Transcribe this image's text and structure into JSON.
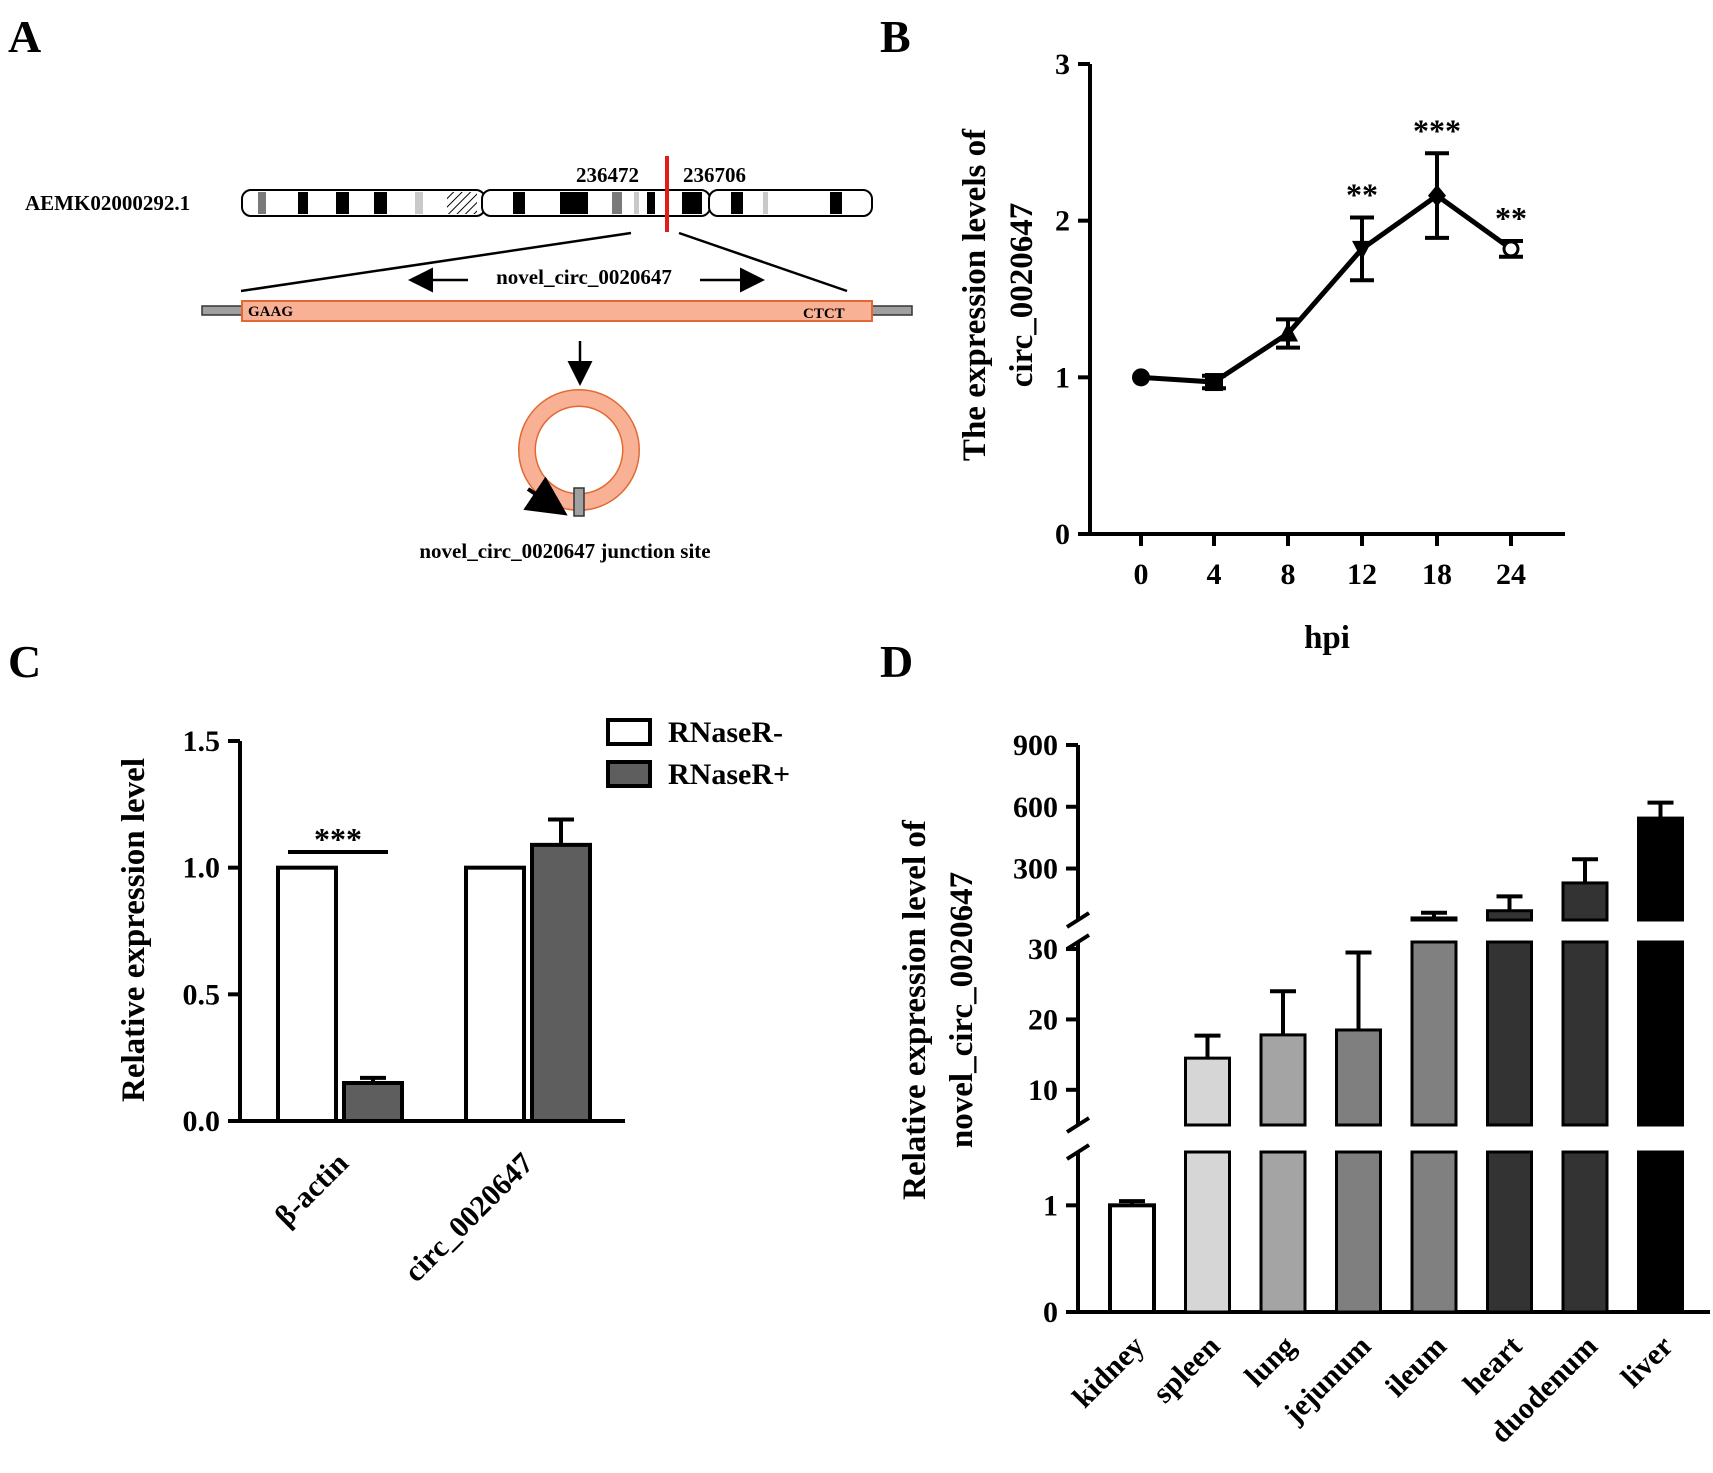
{
  "panels": {
    "A": {
      "letter": "A",
      "accession": "AEMK02000292.1",
      "start_pos": "236472",
      "end_pos": "236706",
      "circ_name": "novel_circ_0020647",
      "left_seq": "GAAG",
      "right_seq": "CTCT",
      "junction_label": "novel_circ_0020647 junction site",
      "colors": {
        "exon": "#f9b196",
        "exon_stroke": "#e06a32",
        "marker": "#e21b1b",
        "gray": "#9a9a9a"
      }
    },
    "B": {
      "letter": "B"
    },
    "C": {
      "letter": "C"
    },
    "D": {
      "letter": "D"
    }
  },
  "chart_data": [
    {
      "id": "B",
      "type": "line",
      "x": [
        0,
        4,
        8,
        12,
        18,
        24
      ],
      "xtick_labels": [
        "0",
        "4",
        "8",
        "12",
        "18",
        "24"
      ],
      "y": [
        1.0,
        0.97,
        1.28,
        1.82,
        2.16,
        1.82
      ],
      "errors": [
        0.0,
        0.04,
        0.09,
        0.2,
        0.27,
        0.05
      ],
      "markers": [
        "circle",
        "square",
        "triangle-up",
        "triangle-down",
        "diamond",
        "circle-open"
      ],
      "significance": [
        "",
        "",
        "",
        "**",
        "***",
        "**"
      ],
      "xlabel": "hpi",
      "ylabel_lines": [
        "The expression levels of",
        "circ_0020647"
      ],
      "ylim": [
        0,
        3
      ],
      "yticks": [
        "0",
        "1",
        "2",
        "3"
      ]
    },
    {
      "id": "C",
      "type": "bar",
      "categories": [
        "β-actin",
        "circ_0020647"
      ],
      "series": [
        {
          "name": "RNaseR-",
          "values": [
            1.0,
            1.0
          ],
          "errors": [
            0.0,
            0.0
          ],
          "color": "#ffffff"
        },
        {
          "name": "RNaseR+",
          "values": [
            0.15,
            1.09
          ],
          "errors": [
            0.02,
            0.1
          ],
          "color": "#5e5e5e"
        }
      ],
      "significance": {
        "category": "β-actin",
        "label": "***"
      },
      "ylabel": "Relative expression level",
      "ylim": [
        0,
        1.5
      ],
      "yticks": [
        "0.0",
        "0.5",
        "1.0",
        "1.5"
      ]
    },
    {
      "id": "D",
      "type": "bar",
      "categories": [
        "kidney",
        "spleen",
        "lung",
        "jejunum",
        "ileum",
        "heart",
        "duodenum",
        "liver"
      ],
      "values": [
        1.0,
        14.5,
        17.8,
        18.5,
        60,
        95,
        230,
        545
      ],
      "errors": [
        0.04,
        3.2,
        6.2,
        11.0,
        25,
        70,
        115,
        75
      ],
      "colors": [
        "#ffffff",
        "#d6d6d6",
        "#a4a4a4",
        "#7f7f7f",
        "#808080",
        "#333333",
        "#333333",
        "#000000"
      ],
      "ylabel_lines": [
        "Relative expression level of",
        "novel_circ_0020647"
      ],
      "y_axis_segments": [
        {
          "range": [
            0,
            1.5
          ],
          "ticks": [
            "0",
            "1"
          ]
        },
        {
          "range": [
            5,
            31
          ],
          "ticks": [
            "10",
            "20",
            "30"
          ]
        },
        {
          "range": [
            50,
            900
          ],
          "ticks": [
            "300",
            "600",
            "900"
          ]
        }
      ]
    }
  ]
}
